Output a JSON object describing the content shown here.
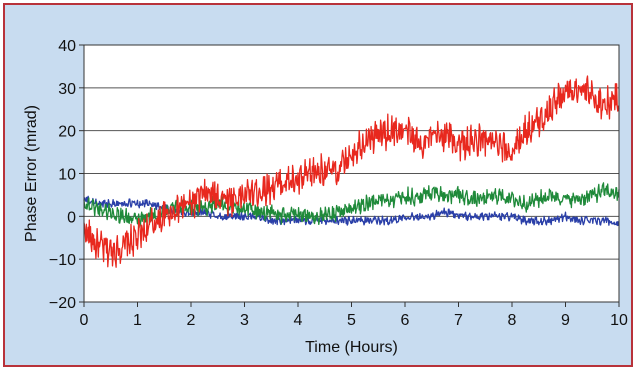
{
  "chart_data": {
    "type": "line",
    "title": "",
    "xlabel": "Time (Hours)",
    "ylabel": "Phase Error (mrad)",
    "xlim": [
      0,
      10
    ],
    "ylim": [
      -20,
      40
    ],
    "x_ticks": [
      0,
      1,
      2,
      3,
      4,
      5,
      6,
      7,
      8,
      9,
      10
    ],
    "y_ticks": [
      -20,
      -10,
      0,
      10,
      20,
      30,
      40
    ],
    "y_tick_labels": [
      "−20",
      "−10",
      "0",
      "10",
      "20",
      "30",
      "40"
    ],
    "grid": "horizontal",
    "legend": "none",
    "series": [
      {
        "color": "#e8281e",
        "x": [
          0,
          0.25,
          0.5,
          0.75,
          1.0,
          1.25,
          1.5,
          1.75,
          2.0,
          2.25,
          2.5,
          2.75,
          3.0,
          3.25,
          3.5,
          3.75,
          4.0,
          4.25,
          4.5,
          4.75,
          5.0,
          5.25,
          5.5,
          5.75,
          6.0,
          6.25,
          6.5,
          6.75,
          7.0,
          7.25,
          7.5,
          7.75,
          8.0,
          8.25,
          8.5,
          8.75,
          9.0,
          9.25,
          9.5,
          9.75,
          10.0
        ],
        "y": [
          -3,
          -7,
          -8,
          -7,
          -5,
          -2,
          0,
          2,
          3,
          5,
          5,
          4,
          5,
          6,
          7,
          8,
          8,
          10,
          11,
          10,
          15,
          18,
          19,
          20,
          20,
          17,
          18,
          19,
          17,
          17,
          18,
          16,
          15,
          20,
          22,
          26,
          29,
          30,
          28,
          26,
          28
        ]
      },
      {
        "color": "#1f8a3a",
        "x": [
          0,
          0.25,
          0.5,
          0.75,
          1.0,
          1.25,
          1.5,
          1.75,
          2.0,
          2.25,
          2.5,
          2.75,
          3.0,
          3.25,
          3.5,
          3.75,
          4.0,
          4.25,
          4.5,
          4.75,
          5.0,
          5.25,
          5.5,
          5.75,
          6.0,
          6.25,
          6.5,
          6.75,
          7.0,
          7.25,
          7.5,
          7.75,
          8.0,
          8.25,
          8.5,
          8.75,
          9.0,
          9.25,
          9.5,
          9.75,
          10.0
        ],
        "y": [
          3,
          2,
          1,
          0,
          -1,
          0,
          1,
          2,
          2,
          2,
          3,
          2,
          2,
          1,
          1,
          0,
          1,
          0,
          0,
          1,
          2,
          3,
          4,
          4,
          5,
          4,
          6,
          5,
          5,
          4,
          4,
          5,
          4,
          3,
          4,
          5,
          4,
          4,
          5,
          6,
          5
        ]
      },
      {
        "color": "#2a3fa8",
        "x": [
          0,
          0.25,
          0.5,
          0.75,
          1.0,
          1.25,
          1.5,
          1.75,
          2.0,
          2.25,
          2.5,
          2.75,
          3.0,
          3.25,
          3.5,
          3.75,
          4.0,
          4.25,
          4.5,
          4.75,
          5.0,
          5.25,
          5.5,
          5.75,
          6.0,
          6.25,
          6.5,
          6.75,
          7.0,
          7.25,
          7.5,
          7.75,
          8.0,
          8.25,
          8.5,
          8.75,
          9.0,
          9.25,
          9.5,
          9.75,
          10.0
        ],
        "y": [
          4,
          3,
          3,
          3,
          3,
          3,
          2,
          1,
          1,
          1,
          0,
          0,
          0,
          0,
          -1,
          -1,
          -1,
          -1,
          -1,
          -1,
          -1,
          -1,
          -1,
          -1,
          0,
          0,
          0,
          1,
          0,
          0,
          0,
          0,
          0,
          -1,
          -1,
          -1,
          0,
          -1,
          -1,
          -1,
          -2
        ]
      }
    ]
  }
}
